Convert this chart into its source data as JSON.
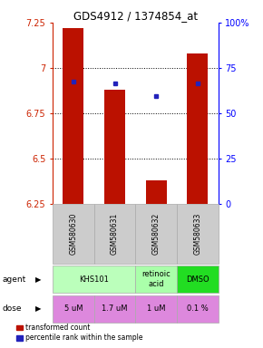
{
  "title": "GDS4912 / 1374854_at",
  "samples": [
    "GSM580630",
    "GSM580631",
    "GSM580632",
    "GSM580633"
  ],
  "bar_bottoms": [
    6.25,
    6.25,
    6.25,
    6.25
  ],
  "bar_tops": [
    7.22,
    6.88,
    6.38,
    7.08
  ],
  "blue_y": [
    6.925,
    6.915,
    6.845,
    6.915
  ],
  "ylim": [
    6.25,
    7.25
  ],
  "yticks": [
    6.25,
    6.5,
    6.75,
    7.0,
    7.25
  ],
  "ytick_labels": [
    "6.25",
    "6.5",
    "6.75",
    "7",
    "7.25"
  ],
  "right_yticks_pct": [
    0,
    25,
    50,
    75,
    100
  ],
  "right_ytick_labels": [
    "0",
    "25",
    "50",
    "75",
    "100%"
  ],
  "dose_labels": [
    "5 uM",
    "1.7 uM",
    "1 uM",
    "0.1 %"
  ],
  "dose_color": "#dd88dd",
  "bar_color": "#bb1100",
  "blue_color": "#2222bb",
  "legend_red": "transformed count",
  "legend_blue": "percentile rank within the sample",
  "agent_groups": [
    {
      "label": "KHS101",
      "start": 0,
      "end": 1,
      "color": "#bbffbb"
    },
    {
      "label": "retinoic\nacid",
      "start": 2,
      "end": 2,
      "color": "#aaffaa"
    },
    {
      "label": "DMSO",
      "start": 3,
      "end": 3,
      "color": "#22dd22"
    }
  ],
  "sample_bg": "#cccccc"
}
